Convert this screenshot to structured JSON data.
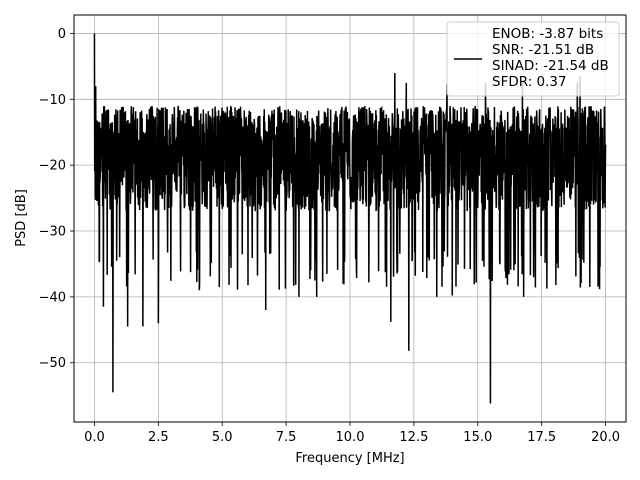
{
  "chart_data": {
    "type": "line",
    "title": "",
    "xlabel": "Frequency [MHz]",
    "ylabel": "PSD [dB]",
    "xlim": [
      -0.8,
      20.8
    ],
    "ylim": [
      -59,
      2.8
    ],
    "xticks": [
      0.0,
      2.5,
      5.0,
      7.5,
      10.0,
      12.5,
      15.0,
      17.5,
      20.0
    ],
    "xtick_labels": [
      "0.0",
      "2.5",
      "5.0",
      "7.5",
      "10.0",
      "12.5",
      "15.0",
      "17.5",
      "20.0"
    ],
    "yticks": [
      0,
      -10,
      -20,
      -30,
      -40,
      -50
    ],
    "ytick_labels": [
      "0",
      "−10",
      "−20",
      "−30",
      "−40",
      "−50"
    ],
    "grid": true,
    "legend_position": "top-right",
    "series": [
      {
        "name": "ENOB: -3.87 bits\nSNR: -21.51 dB\nSINAD: -21.54 dB\nSFDR: 0.37",
        "legend_lines": [
          "ENOB: -3.87 bits",
          "SNR: -21.51 dB",
          "SINAD: -21.54 dB",
          "SFDR: 0.37"
        ],
        "color": "#000000",
        "x_start": 0.0,
        "x_end": 20.0,
        "num_points": 2048,
        "y_median": -18,
        "y_typical_range": [
          -29,
          -10
        ],
        "y_max": 0.0,
        "y_max_x": 0.0,
        "notable_points": [
          {
            "x": 0.0,
            "y": 0.0
          },
          {
            "x": 0.05,
            "y": -8
          },
          {
            "x": 0.35,
            "y": -41.5
          },
          {
            "x": 0.72,
            "y": -54.5
          },
          {
            "x": 1.3,
            "y": -44.5
          },
          {
            "x": 1.9,
            "y": -44.5
          },
          {
            "x": 2.5,
            "y": -44
          },
          {
            "x": 4.1,
            "y": -39
          },
          {
            "x": 6.7,
            "y": -42
          },
          {
            "x": 8.0,
            "y": -40
          },
          {
            "x": 8.7,
            "y": -40
          },
          {
            "x": 11.6,
            "y": -43.8
          },
          {
            "x": 12.3,
            "y": -48.2
          },
          {
            "x": 13.4,
            "y": -40
          },
          {
            "x": 14.0,
            "y": -39.8
          },
          {
            "x": 15.5,
            "y": -56.2
          },
          {
            "x": 16.8,
            "y": -40
          },
          {
            "x": 18.9,
            "y": -43
          },
          {
            "x": 11.75,
            "y": -6
          },
          {
            "x": 12.2,
            "y": -7.5
          },
          {
            "x": 13.8,
            "y": -7.7
          },
          {
            "x": 15.3,
            "y": -7.5
          },
          {
            "x": 16.75,
            "y": -7.5
          },
          {
            "x": 18.9,
            "y": -7.5
          },
          {
            "x": 19.0,
            "y": -6.5
          }
        ]
      }
    ]
  }
}
